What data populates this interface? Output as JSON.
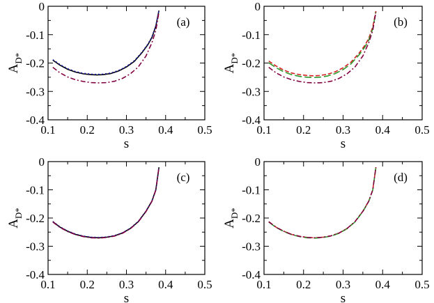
{
  "chart_data": [
    {
      "type": "line",
      "panel_label": "(a)",
      "xlabel": "s",
      "ylabel_main": "A",
      "ylabel_sub": "D*",
      "xlim": [
        0.1,
        0.5
      ],
      "ylim": [
        -0.4,
        0
      ],
      "xticks": [
        "0.1",
        "0.2",
        "0.3",
        "0.4",
        "0.5"
      ],
      "yticks": [
        "-0.4",
        "-0.3",
        "-0.2",
        "-0.1",
        "0"
      ],
      "series": [
        {
          "name": "solid",
          "color": "#000000",
          "dash": "",
          "x": [
            0.112,
            0.13,
            0.15,
            0.17,
            0.19,
            0.21,
            0.225,
            0.24,
            0.26,
            0.28,
            0.3,
            0.32,
            0.34,
            0.355,
            0.365,
            0.375,
            0.383
          ],
          "y": [
            -0.19,
            -0.207,
            -0.222,
            -0.232,
            -0.238,
            -0.241,
            -0.242,
            -0.241,
            -0.237,
            -0.228,
            -0.214,
            -0.194,
            -0.163,
            -0.135,
            -0.11,
            -0.07,
            -0.015
          ]
        },
        {
          "name": "dotted",
          "color": "#1a1aa8",
          "dash": "2,3",
          "x": [
            0.112,
            0.13,
            0.15,
            0.17,
            0.19,
            0.21,
            0.225,
            0.24,
            0.26,
            0.28,
            0.3,
            0.32,
            0.34,
            0.355,
            0.365,
            0.375,
            0.383
          ],
          "y": [
            -0.188,
            -0.205,
            -0.22,
            -0.23,
            -0.236,
            -0.239,
            -0.24,
            -0.239,
            -0.235,
            -0.226,
            -0.212,
            -0.192,
            -0.161,
            -0.133,
            -0.108,
            -0.068,
            -0.014
          ]
        },
        {
          "name": "dash-dot",
          "color": "#800040",
          "dash": "7,3,2,3",
          "x": [
            0.112,
            0.13,
            0.15,
            0.17,
            0.19,
            0.21,
            0.23,
            0.25,
            0.27,
            0.29,
            0.31,
            0.33,
            0.35,
            0.365,
            0.375,
            0.383
          ],
          "y": [
            -0.215,
            -0.234,
            -0.249,
            -0.259,
            -0.265,
            -0.269,
            -0.27,
            -0.269,
            -0.264,
            -0.254,
            -0.238,
            -0.214,
            -0.175,
            -0.128,
            -0.085,
            -0.02
          ]
        }
      ]
    },
    {
      "type": "line",
      "panel_label": "(b)",
      "xlabel": "s",
      "ylabel_main": "A",
      "ylabel_sub": "D*",
      "xlim": [
        0.1,
        0.5
      ],
      "ylim": [
        -0.4,
        0
      ],
      "xticks": [
        "0.1",
        "0.2",
        "0.3",
        "0.4",
        "0.5"
      ],
      "yticks": [
        "-0.4",
        "-0.3",
        "-0.2",
        "-0.1",
        "0"
      ],
      "series": [
        {
          "name": "dashed-red",
          "color": "#d42020",
          "dash": "6,3",
          "x": [
            0.112,
            0.13,
            0.15,
            0.17,
            0.19,
            0.21,
            0.225,
            0.24,
            0.26,
            0.28,
            0.3,
            0.32,
            0.34,
            0.355,
            0.365,
            0.375,
            0.383
          ],
          "y": [
            -0.193,
            -0.21,
            -0.225,
            -0.235,
            -0.241,
            -0.244,
            -0.245,
            -0.244,
            -0.24,
            -0.231,
            -0.217,
            -0.197,
            -0.166,
            -0.138,
            -0.113,
            -0.073,
            -0.017
          ]
        },
        {
          "name": "dashed-green",
          "color": "#2a9a2a",
          "dash": "10,4",
          "x": [
            0.112,
            0.13,
            0.15,
            0.17,
            0.19,
            0.21,
            0.225,
            0.24,
            0.26,
            0.28,
            0.3,
            0.32,
            0.34,
            0.355,
            0.365,
            0.375,
            0.383
          ],
          "y": [
            -0.199,
            -0.216,
            -0.231,
            -0.241,
            -0.247,
            -0.25,
            -0.251,
            -0.25,
            -0.246,
            -0.237,
            -0.223,
            -0.203,
            -0.172,
            -0.144,
            -0.119,
            -0.079,
            -0.02
          ]
        },
        {
          "name": "dash-dot",
          "color": "#800040",
          "dash": "7,3,2,3",
          "x": [
            0.112,
            0.13,
            0.15,
            0.17,
            0.19,
            0.21,
            0.23,
            0.25,
            0.27,
            0.29,
            0.31,
            0.33,
            0.35,
            0.365,
            0.375,
            0.383
          ],
          "y": [
            -0.215,
            -0.234,
            -0.249,
            -0.259,
            -0.265,
            -0.269,
            -0.27,
            -0.269,
            -0.264,
            -0.254,
            -0.238,
            -0.214,
            -0.175,
            -0.128,
            -0.085,
            -0.02
          ]
        }
      ]
    },
    {
      "type": "line",
      "panel_label": "(c)",
      "xlabel": "s",
      "ylabel_main": "A",
      "ylabel_sub": "D*",
      "xlim": [
        0.1,
        0.5
      ],
      "ylim": [
        -0.4,
        0
      ],
      "xticks": [
        "0.1",
        "0.2",
        "0.3",
        "0.4",
        "0.5"
      ],
      "yticks": [
        "-0.4",
        "-0.3",
        "-0.2",
        "-0.1",
        "0"
      ],
      "series": [
        {
          "name": "solid",
          "color": "#000000",
          "dash": "",
          "x": [
            0.112,
            0.13,
            0.15,
            0.17,
            0.19,
            0.21,
            0.23,
            0.25,
            0.27,
            0.29,
            0.31,
            0.33,
            0.35,
            0.365,
            0.375,
            0.383
          ],
          "y": [
            -0.213,
            -0.232,
            -0.247,
            -0.258,
            -0.265,
            -0.269,
            -0.27,
            -0.268,
            -0.263,
            -0.253,
            -0.237,
            -0.213,
            -0.176,
            -0.14,
            -0.1,
            -0.02
          ]
        },
        {
          "name": "dotted",
          "color": "#1a1aa8",
          "dash": "2,3",
          "x": [
            0.112,
            0.13,
            0.15,
            0.17,
            0.19,
            0.21,
            0.23,
            0.25,
            0.27,
            0.29,
            0.31,
            0.33,
            0.35,
            0.365,
            0.375,
            0.383
          ],
          "y": [
            -0.212,
            -0.231,
            -0.246,
            -0.257,
            -0.264,
            -0.268,
            -0.269,
            -0.267,
            -0.262,
            -0.252,
            -0.236,
            -0.212,
            -0.175,
            -0.139,
            -0.099,
            -0.019
          ]
        },
        {
          "name": "dash-dot",
          "color": "#800040",
          "dash": "7,3,2,3",
          "x": [
            0.112,
            0.13,
            0.15,
            0.17,
            0.19,
            0.21,
            0.23,
            0.25,
            0.27,
            0.29,
            0.31,
            0.33,
            0.35,
            0.365,
            0.375,
            0.383
          ],
          "y": [
            -0.214,
            -0.233,
            -0.248,
            -0.259,
            -0.266,
            -0.27,
            -0.271,
            -0.269,
            -0.264,
            -0.254,
            -0.238,
            -0.214,
            -0.177,
            -0.141,
            -0.101,
            -0.021
          ]
        }
      ]
    },
    {
      "type": "line",
      "panel_label": "(d)",
      "xlabel": "s",
      "ylabel_main": "A",
      "ylabel_sub": "D*",
      "xlim": [
        0.1,
        0.5
      ],
      "ylim": [
        -0.4,
        0
      ],
      "xticks": [
        "0.1",
        "0.2",
        "0.3",
        "0.4",
        "0.5"
      ],
      "yticks": [
        "-0.4",
        "-0.3",
        "-0.2",
        "-0.1",
        "0"
      ],
      "series": [
        {
          "name": "dashed-red",
          "color": "#d42020",
          "dash": "6,3",
          "x": [
            0.112,
            0.13,
            0.15,
            0.17,
            0.19,
            0.21,
            0.23,
            0.25,
            0.27,
            0.29,
            0.31,
            0.33,
            0.35,
            0.365,
            0.375,
            0.383
          ],
          "y": [
            -0.213,
            -0.232,
            -0.247,
            -0.258,
            -0.265,
            -0.269,
            -0.27,
            -0.268,
            -0.263,
            -0.253,
            -0.237,
            -0.213,
            -0.176,
            -0.14,
            -0.1,
            -0.02
          ]
        },
        {
          "name": "dashed-green",
          "color": "#2a9a2a",
          "dash": "10,4",
          "x": [
            0.112,
            0.13,
            0.15,
            0.17,
            0.19,
            0.21,
            0.23,
            0.25,
            0.27,
            0.29,
            0.31,
            0.33,
            0.35,
            0.365,
            0.375,
            0.383
          ],
          "y": [
            -0.214,
            -0.233,
            -0.248,
            -0.259,
            -0.266,
            -0.27,
            -0.271,
            -0.269,
            -0.264,
            -0.254,
            -0.238,
            -0.214,
            -0.177,
            -0.141,
            -0.101,
            -0.021
          ]
        },
        {
          "name": "dash-dot",
          "color": "#800040",
          "dash": "7,3,2,3",
          "x": [
            0.112,
            0.13,
            0.15,
            0.17,
            0.19,
            0.21,
            0.23,
            0.25,
            0.27,
            0.29,
            0.31,
            0.33,
            0.35,
            0.365,
            0.375,
            0.383
          ],
          "y": [
            -0.213,
            -0.232,
            -0.247,
            -0.258,
            -0.265,
            -0.269,
            -0.27,
            -0.268,
            -0.263,
            -0.253,
            -0.237,
            -0.213,
            -0.176,
            -0.14,
            -0.1,
            -0.02
          ]
        }
      ]
    }
  ]
}
